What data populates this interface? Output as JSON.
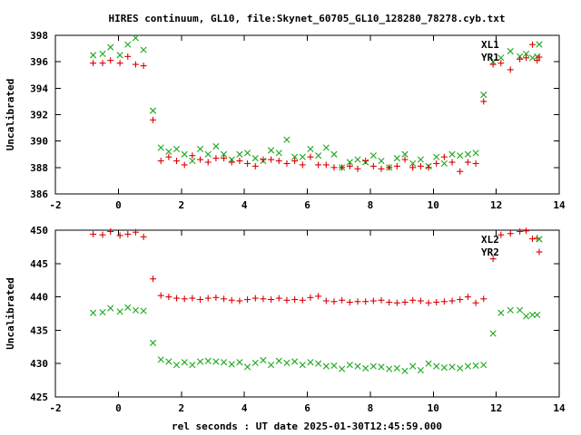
{
  "title": "HIRES continuum, GL10, file:Skynet_60705_GL10_128280_78278.cyb.txt",
  "chart_data": [
    {
      "type": "scatter",
      "ylabel": "Uncalibrated",
      "xlim": [
        -2,
        14
      ],
      "ylim": [
        386,
        398
      ],
      "xticks": [
        "-2",
        "0",
        "2",
        "4",
        "6",
        "8",
        "10",
        "12",
        "14"
      ],
      "yticks": [
        "386",
        "388",
        "390",
        "392",
        "394",
        "396",
        "398"
      ],
      "legend_position": "top-right",
      "series": [
        {
          "name": "XL1",
          "marker": "x",
          "color": "#1aa81a",
          "x": [
            -0.8,
            -0.5,
            -0.25,
            0.05,
            0.3,
            0.55,
            0.8,
            1.1,
            1.35,
            1.6,
            1.85,
            2.1,
            2.35,
            2.6,
            2.85,
            3.1,
            3.35,
            3.6,
            3.85,
            4.1,
            4.35,
            4.6,
            4.85,
            5.1,
            5.35,
            5.6,
            5.85,
            6.1,
            6.35,
            6.6,
            6.85,
            7.1,
            7.35,
            7.6,
            7.85,
            8.1,
            8.35,
            8.6,
            8.85,
            9.1,
            9.35,
            9.6,
            9.85,
            10.1,
            10.35,
            10.6,
            10.85,
            11.1,
            11.35,
            11.6,
            11.9,
            12.15,
            12.45,
            12.75,
            12.95,
            13.15,
            13.3
          ],
          "y": [
            396.5,
            396.6,
            397.1,
            396.5,
            397.3,
            397.8,
            396.9,
            392.3,
            389.5,
            389.2,
            389.4,
            389.0,
            388.5,
            389.4,
            389.0,
            389.6,
            389.0,
            388.6,
            389.0,
            389.1,
            388.7,
            388.5,
            389.3,
            389.1,
            390.1,
            388.8,
            388.8,
            389.4,
            388.9,
            389.5,
            389.0,
            388.0,
            388.4,
            388.6,
            388.4,
            388.9,
            388.5,
            388.0,
            388.7,
            389.0,
            388.3,
            388.6,
            388.1,
            388.8,
            388.3,
            389.0,
            388.9,
            389.0,
            389.1,
            393.5,
            396.0,
            396.3,
            396.8,
            396.4,
            396.6,
            396.3,
            396.4
          ]
        },
        {
          "name": "YR1",
          "marker": "+",
          "color": "#dd0000",
          "x": [
            -0.8,
            -0.5,
            -0.25,
            0.05,
            0.3,
            0.55,
            0.8,
            1.1,
            1.35,
            1.6,
            1.85,
            2.1,
            2.35,
            2.6,
            2.85,
            3.1,
            3.35,
            3.6,
            3.85,
            4.1,
            4.35,
            4.6,
            4.85,
            5.1,
            5.35,
            5.6,
            5.85,
            6.1,
            6.35,
            6.6,
            6.85,
            7.1,
            7.35,
            7.6,
            7.85,
            8.1,
            8.35,
            8.6,
            8.85,
            9.1,
            9.35,
            9.6,
            9.85,
            10.1,
            10.35,
            10.6,
            10.85,
            11.1,
            11.35,
            11.6,
            11.9,
            12.15,
            12.45,
            12.75,
            12.95,
            13.15,
            13.3
          ],
          "y": [
            395.9,
            395.9,
            396.1,
            395.9,
            396.4,
            395.8,
            395.7,
            391.6,
            388.5,
            388.8,
            388.5,
            388.2,
            388.9,
            388.6,
            388.4,
            388.7,
            388.7,
            388.4,
            388.5,
            388.3,
            388.1,
            388.6,
            388.6,
            388.5,
            388.3,
            388.5,
            388.2,
            388.8,
            388.2,
            388.2,
            388.0,
            388.0,
            388.1,
            387.9,
            388.5,
            388.1,
            387.9,
            388.0,
            388.1,
            388.6,
            388.0,
            388.1,
            388.0,
            388.3,
            388.8,
            388.4,
            387.7,
            388.4,
            388.3,
            393.0,
            395.8,
            395.9,
            395.4,
            396.2,
            396.3,
            397.3,
            396.1
          ]
        }
      ]
    },
    {
      "type": "scatter",
      "ylabel": "Uncalibrated",
      "xlabel": "rel seconds : UT date 2025-01-30T12:45:59.000",
      "xlim": [
        -2,
        14
      ],
      "ylim": [
        425,
        450
      ],
      "xticks": [
        "-2",
        "0",
        "2",
        "4",
        "6",
        "8",
        "10",
        "12",
        "14"
      ],
      "yticks": [
        "425",
        "430",
        "435",
        "440",
        "445",
        "450"
      ],
      "legend_position": "top-right",
      "series": [
        {
          "name": "XL2",
          "marker": "x",
          "color": "#1aa81a",
          "x": [
            -0.8,
            -0.5,
            -0.25,
            0.05,
            0.3,
            0.55,
            0.8,
            1.1,
            1.35,
            1.6,
            1.85,
            2.1,
            2.35,
            2.6,
            2.85,
            3.1,
            3.35,
            3.6,
            3.85,
            4.1,
            4.35,
            4.6,
            4.85,
            5.1,
            5.35,
            5.6,
            5.85,
            6.1,
            6.35,
            6.6,
            6.85,
            7.1,
            7.35,
            7.6,
            7.85,
            8.1,
            8.35,
            8.6,
            8.85,
            9.1,
            9.35,
            9.6,
            9.85,
            10.1,
            10.35,
            10.6,
            10.85,
            11.1,
            11.35,
            11.6,
            11.9,
            12.15,
            12.45,
            12.75,
            12.95,
            13.15,
            13.3
          ],
          "y": [
            437.6,
            437.7,
            438.3,
            437.8,
            438.4,
            438.0,
            437.9,
            433.1,
            430.6,
            430.3,
            429.8,
            430.2,
            429.8,
            430.3,
            430.4,
            430.3,
            430.2,
            429.9,
            430.2,
            429.5,
            430.1,
            430.5,
            429.8,
            430.4,
            430.1,
            430.3,
            429.8,
            430.2,
            430.0,
            429.6,
            429.7,
            429.2,
            429.8,
            429.6,
            429.3,
            429.6,
            429.5,
            429.2,
            429.3,
            428.9,
            429.6,
            429.0,
            430.0,
            429.6,
            429.4,
            429.5,
            429.3,
            429.6,
            429.7,
            429.8,
            434.5,
            437.6,
            438.0,
            438.0,
            437.1,
            437.3,
            437.3
          ]
        },
        {
          "name": "YR2",
          "marker": "+",
          "color": "#dd0000",
          "x": [
            -0.8,
            -0.5,
            -0.25,
            0.05,
            0.3,
            0.55,
            0.8,
            1.1,
            1.35,
            1.6,
            1.85,
            2.1,
            2.35,
            2.6,
            2.85,
            3.1,
            3.35,
            3.6,
            3.85,
            4.1,
            4.35,
            4.6,
            4.85,
            5.1,
            5.35,
            5.6,
            5.85,
            6.1,
            6.35,
            6.6,
            6.85,
            7.1,
            7.35,
            7.6,
            7.85,
            8.1,
            8.35,
            8.6,
            8.85,
            9.1,
            9.35,
            9.6,
            9.85,
            10.1,
            10.35,
            10.6,
            10.85,
            11.1,
            11.35,
            11.6,
            11.9,
            12.15,
            12.45,
            12.75,
            12.95,
            13.15,
            13.3
          ],
          "y": [
            449.4,
            449.3,
            449.8,
            449.2,
            449.4,
            449.7,
            449.0,
            442.7,
            440.2,
            440.0,
            439.8,
            439.7,
            439.8,
            439.6,
            439.8,
            439.9,
            439.7,
            439.5,
            439.4,
            439.6,
            439.8,
            439.7,
            439.6,
            439.8,
            439.5,
            439.6,
            439.5,
            439.9,
            440.1,
            439.4,
            439.3,
            439.5,
            439.2,
            439.3,
            439.3,
            439.4,
            439.5,
            439.2,
            439.1,
            439.2,
            439.5,
            439.4,
            439.1,
            439.2,
            439.3,
            439.4,
            439.6,
            440.0,
            439.1,
            439.7,
            445.7,
            449.3,
            449.5,
            449.8,
            449.9,
            448.7,
            448.8
          ]
        }
      ]
    }
  ]
}
